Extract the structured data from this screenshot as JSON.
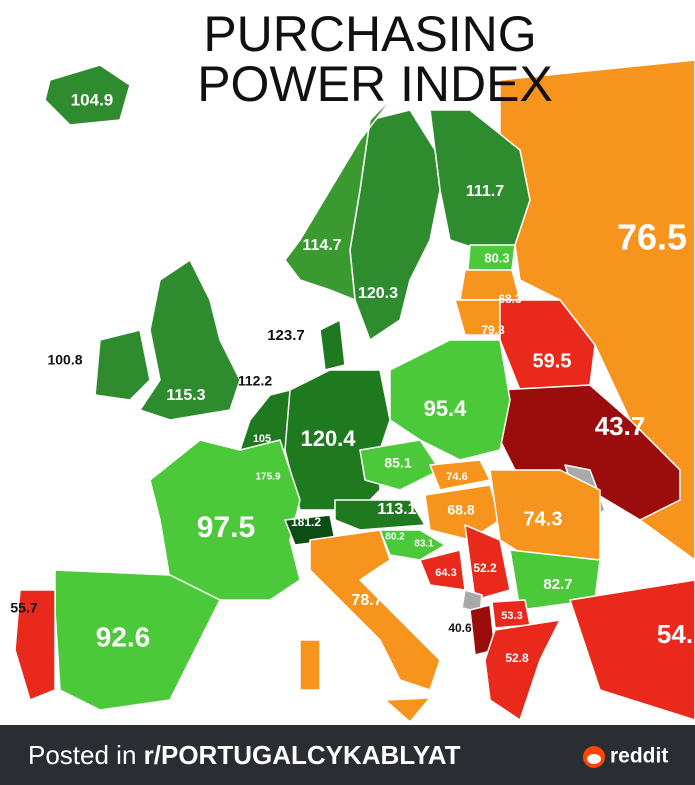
{
  "header": {
    "title_line_1": "PURCHASING",
    "title_line_2": "POWER INDEX"
  },
  "map_labels": [
    104.9,
    111.7,
    76.5,
    80.3,
    114.7,
    120.3,
    68.3,
    79.3,
    123.7,
    100.8,
    59.5,
    112.2,
    115.3,
    95.4,
    43.7,
    105,
    120.4,
    85.1,
    175.9,
    74.6,
    68.8,
    113.1,
    97.5,
    181.2,
    74.3,
    80.2,
    83.1,
    64.3,
    52.2,
    82.7,
    55.7,
    78.7,
    92.6,
    53.3,
    40.6,
    52.8,
    "54."
  ],
  "footer": {
    "prefix": "Posted in ",
    "subreddit": "r/PORTUGALCYKABLYAT",
    "brand": "reddit"
  }
}
